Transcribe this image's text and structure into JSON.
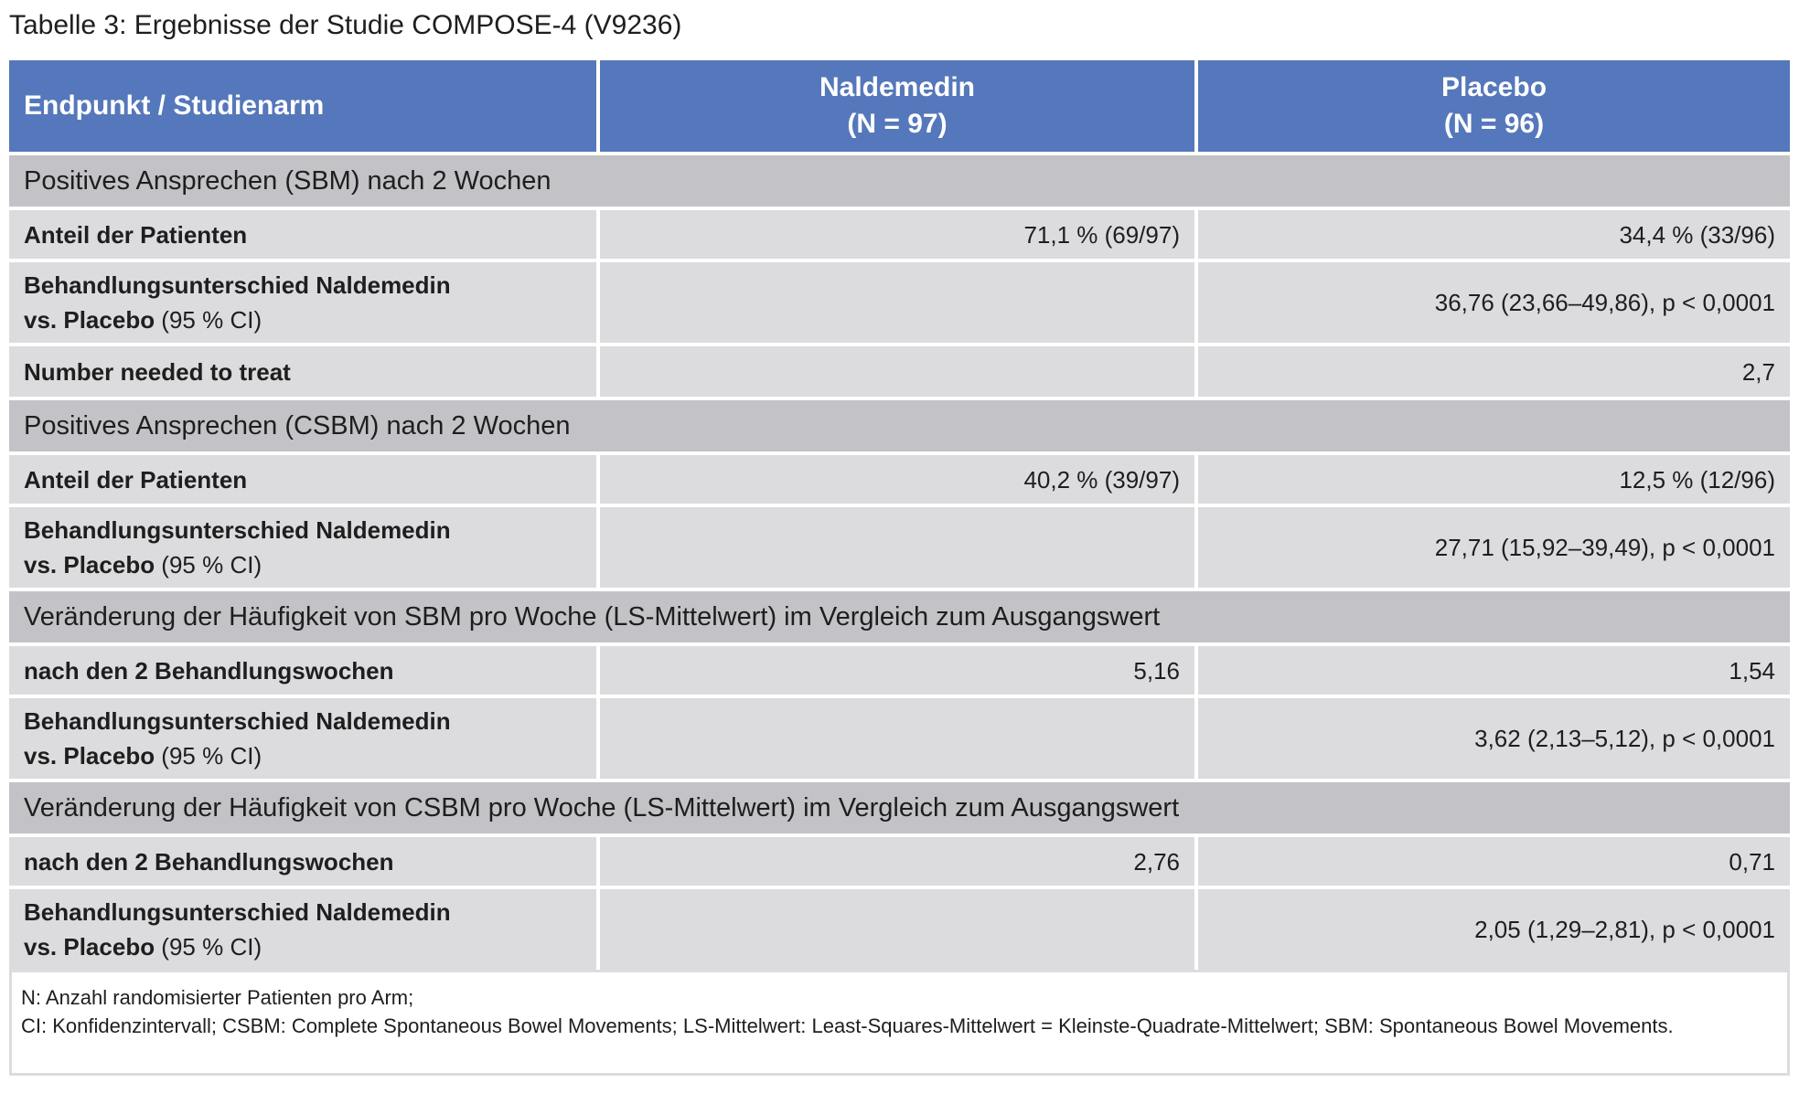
{
  "title": "Tabelle 3: Ergebnisse der Studie COMPOSE-4 (V9236)",
  "header": {
    "col1": "Endpunkt / Studienarm",
    "col2_name": "Naldemedin",
    "col2_n": "(N = 97)",
    "col3_name": "Placebo",
    "col3_n": "(N = 96)"
  },
  "sections": [
    {
      "title": "Positives Ansprechen (SBM) nach 2 Wochen",
      "rows": [
        {
          "label": "Anteil der Patienten",
          "naldemedin": "71,1 % (69/97)",
          "placebo": "34,4 % (33/96)"
        },
        {
          "label_bold": "Behandlungsunterschied Naldemedin",
          "label_bold2": "vs. Placebo",
          "label_rest": " (95 % CI)",
          "value": "36,76 (23,66–49,86), p < 0,0001"
        },
        {
          "label": "Number needed to treat",
          "value": "2,7"
        }
      ]
    },
    {
      "title": "Positives Ansprechen (CSBM) nach 2 Wochen",
      "rows": [
        {
          "label": "Anteil der Patienten",
          "naldemedin": "40,2 % (39/97)",
          "placebo": "12,5 % (12/96)"
        },
        {
          "label_bold": "Behandlungsunterschied Naldemedin",
          "label_bold2": "vs. Placebo",
          "label_rest": " (95 % CI)",
          "value": "27,71 (15,92–39,49), p < 0,0001"
        }
      ]
    },
    {
      "title": "Veränderung der Häufigkeit von SBM pro Woche (LS-Mittelwert) im Vergleich zum Ausgangswert",
      "rows": [
        {
          "label": "nach den 2 Behandlungswochen",
          "naldemedin": "5,16",
          "placebo": "1,54"
        },
        {
          "label_bold": "Behandlungsunterschied Naldemedin",
          "label_bold2": "vs. Placebo",
          "label_rest": " (95 % CI)",
          "value": "3,62 (2,13–5,12), p < 0,0001"
        }
      ]
    },
    {
      "title": "Veränderung der Häufigkeit von CSBM pro Woche (LS-Mittelwert) im Vergleich zum Ausgangswert",
      "rows": [
        {
          "label": "nach den 2 Behandlungswochen",
          "naldemedin": "2,76",
          "placebo": "0,71"
        },
        {
          "label_bold": "Behandlungsunterschied Naldemedin",
          "label_bold2": "vs. Placebo",
          "label_rest": " (95 % CI)",
          "value": "2,05 (1,29–2,81), p < 0,0001"
        }
      ]
    }
  ],
  "footnote": {
    "line1": "N: Anzahl randomisierter Patienten pro Arm;",
    "line2": "CI: Konfidenzintervall; CSBM: Complete Spontaneous Bowel Movements; LS-Mittelwert: Least-Squares-Mittelwert = Kleinste-Quadrate-Mittelwert; SBM: Spontaneous Bowel Movements."
  },
  "colors": {
    "header_bg": "#5577bb",
    "section_bg": "#c3c3c7",
    "cell_bg": "#dcdcde"
  }
}
